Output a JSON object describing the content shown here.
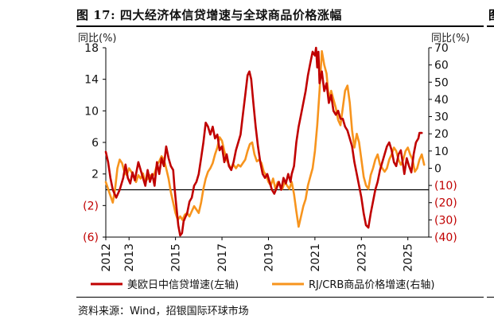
{
  "title": "图 17: 四大经济体信贷增速与全球商品价格涨幅",
  "source": "资料来源：Wind，招银国际环球市场",
  "chart_data": {
    "type": "line",
    "y_left": {
      "unit_label": "同比(%)",
      "range": [
        -6,
        18
      ],
      "ticks": [
        18,
        14,
        10,
        6,
        2,
        -2,
        -6
      ],
      "tick_labels": [
        "18",
        "14",
        "10",
        "6",
        "2",
        "(2)",
        "(6)"
      ]
    },
    "y_right": {
      "unit_label": "同比(%)",
      "range": [
        -40,
        70
      ],
      "ticks": [
        70,
        60,
        50,
        40,
        30,
        20,
        10,
        0,
        -10,
        -20,
        -30,
        -40
      ],
      "tick_labels": [
        "70",
        "60",
        "50",
        "40",
        "30",
        "20",
        "10",
        "0",
        "(10)",
        "(20)",
        "(30)",
        "(40)"
      ]
    },
    "x": {
      "range": [
        2012,
        2025.9
      ],
      "ticks": [
        2012,
        2013,
        2015,
        2017,
        2019,
        2021,
        2023,
        2025
      ],
      "tick_labels": [
        "2012",
        "2013",
        "2015",
        "2017",
        "2019",
        "2021",
        "2023",
        "2025"
      ]
    },
    "legend_position": "bottom",
    "series": [
      {
        "name": "美欧日中信贷增速(左轴)",
        "axis": "left",
        "color": "#c00000",
        "points": [
          [
            2012.0,
            4.8
          ],
          [
            2012.1,
            3.5
          ],
          [
            2012.2,
            1.5
          ],
          [
            2012.3,
            0.0
          ],
          [
            2012.45,
            -1.0
          ],
          [
            2012.6,
            0.0
          ],
          [
            2012.75,
            1.5
          ],
          [
            2012.85,
            3.2
          ],
          [
            2012.95,
            1.5
          ],
          [
            2013.05,
            0.8
          ],
          [
            2013.15,
            2.2
          ],
          [
            2013.25,
            1.2
          ],
          [
            2013.4,
            3.5
          ],
          [
            2013.55,
            2.0
          ],
          [
            2013.7,
            0.5
          ],
          [
            2013.8,
            2.5
          ],
          [
            2013.9,
            1.0
          ],
          [
            2014.0,
            2.0
          ],
          [
            2014.1,
            0.5
          ],
          [
            2014.2,
            3.5
          ],
          [
            2014.3,
            2.0
          ],
          [
            2014.4,
            4.0
          ],
          [
            2014.5,
            3.0
          ],
          [
            2014.6,
            5.5
          ],
          [
            2014.7,
            4.0
          ],
          [
            2014.8,
            3.0
          ],
          [
            2014.9,
            2.5
          ],
          [
            2014.95,
            0.5
          ],
          [
            2015.0,
            -1.0
          ],
          [
            2015.05,
            -2.5
          ],
          [
            2015.12,
            -4.5
          ],
          [
            2015.2,
            -5.8
          ],
          [
            2015.28,
            -5.5
          ],
          [
            2015.35,
            -4.0
          ],
          [
            2015.42,
            -3.5
          ],
          [
            2015.5,
            -3.0
          ],
          [
            2015.6,
            -1.5
          ],
          [
            2015.7,
            -1.0
          ],
          [
            2015.8,
            0.5
          ],
          [
            2015.9,
            1.0
          ],
          [
            2016.0,
            2.0
          ],
          [
            2016.1,
            4.0
          ],
          [
            2016.2,
            6.0
          ],
          [
            2016.3,
            8.5
          ],
          [
            2016.4,
            8.0
          ],
          [
            2016.5,
            7.0
          ],
          [
            2016.6,
            8.0
          ],
          [
            2016.7,
            6.5
          ],
          [
            2016.8,
            7.0
          ],
          [
            2016.9,
            5.0
          ],
          [
            2017.0,
            5.5
          ],
          [
            2017.1,
            3.5
          ],
          [
            2017.2,
            4.5
          ],
          [
            2017.3,
            3.0
          ],
          [
            2017.4,
            2.5
          ],
          [
            2017.5,
            3.5
          ],
          [
            2017.6,
            5.0
          ],
          [
            2017.7,
            6.0
          ],
          [
            2017.8,
            7.0
          ],
          [
            2017.9,
            9.5
          ],
          [
            2018.0,
            12.0
          ],
          [
            2018.1,
            14.5
          ],
          [
            2018.18,
            15.0
          ],
          [
            2018.26,
            14.0
          ],
          [
            2018.35,
            11.0
          ],
          [
            2018.45,
            8.0
          ],
          [
            2018.55,
            5.5
          ],
          [
            2018.65,
            3.5
          ],
          [
            2018.75,
            2.0
          ],
          [
            2018.85,
            1.5
          ],
          [
            2018.95,
            2.0
          ],
          [
            2019.05,
            1.0
          ],
          [
            2019.15,
            0.0
          ],
          [
            2019.25,
            -0.5
          ],
          [
            2019.35,
            0.2
          ],
          [
            2019.45,
            1.0
          ],
          [
            2019.55,
            0.0
          ],
          [
            2019.65,
            1.5
          ],
          [
            2019.75,
            0.8
          ],
          [
            2019.85,
            2.0
          ],
          [
            2019.95,
            1.0
          ],
          [
            2020.0,
            2.0
          ],
          [
            2020.1,
            3.0
          ],
          [
            2020.2,
            6.0
          ],
          [
            2020.3,
            8.0
          ],
          [
            2020.4,
            9.5
          ],
          [
            2020.5,
            11.0
          ],
          [
            2020.6,
            12.5
          ],
          [
            2020.7,
            14.5
          ],
          [
            2020.8,
            16.0
          ],
          [
            2020.9,
            17.5
          ],
          [
            2021.0,
            17.0
          ],
          [
            2021.05,
            18.0
          ],
          [
            2021.1,
            15.5
          ],
          [
            2021.15,
            17.5
          ],
          [
            2021.2,
            13.5
          ],
          [
            2021.3,
            15.0
          ],
          [
            2021.4,
            12.5
          ],
          [
            2021.5,
            13.5
          ],
          [
            2021.6,
            11.0
          ],
          [
            2021.7,
            12.0
          ],
          [
            2021.8,
            10.0
          ],
          [
            2021.9,
            9.5
          ],
          [
            2022.0,
            10.0
          ],
          [
            2022.1,
            9.0
          ],
          [
            2022.2,
            9.0
          ],
          [
            2022.3,
            8.0
          ],
          [
            2022.4,
            7.5
          ],
          [
            2022.5,
            6.5
          ],
          [
            2022.6,
            5.5
          ],
          [
            2022.7,
            3.5
          ],
          [
            2022.8,
            2.0
          ],
          [
            2022.9,
            0.5
          ],
          [
            2023.0,
            -1.0
          ],
          [
            2023.1,
            -3.0
          ],
          [
            2023.2,
            -4.5
          ],
          [
            2023.3,
            -4.8
          ],
          [
            2023.4,
            -3.0
          ],
          [
            2023.5,
            -1.5
          ],
          [
            2023.6,
            0.0
          ],
          [
            2023.7,
            1.0
          ],
          [
            2023.8,
            2.5
          ],
          [
            2023.9,
            3.5
          ],
          [
            2024.0,
            4.5
          ],
          [
            2024.1,
            5.5
          ],
          [
            2024.2,
            6.0
          ],
          [
            2024.3,
            5.0
          ],
          [
            2024.4,
            3.5
          ],
          [
            2024.5,
            3.0
          ],
          [
            2024.6,
            4.5
          ],
          [
            2024.7,
            5.0
          ],
          [
            2024.8,
            3.0
          ],
          [
            2024.85,
            2.0
          ],
          [
            2024.95,
            4.0
          ],
          [
            2025.05,
            3.0
          ],
          [
            2025.15,
            2.2
          ],
          [
            2025.25,
            4.5
          ],
          [
            2025.35,
            6.0
          ],
          [
            2025.45,
            6.5
          ],
          [
            2025.5,
            7.2
          ],
          [
            2025.6,
            7.2
          ]
        ]
      },
      {
        "name": "RJ/CRB商品价格增速(右轴)",
        "axis": "right",
        "color": "#f7941d",
        "points": [
          [
            2012.0,
            -8.0
          ],
          [
            2012.1,
            -12.0
          ],
          [
            2012.2,
            -16.0
          ],
          [
            2012.3,
            -20.0
          ],
          [
            2012.4,
            -12.0
          ],
          [
            2012.5,
            0.0
          ],
          [
            2012.6,
            5.0
          ],
          [
            2012.7,
            3.0
          ],
          [
            2012.8,
            -2.0
          ],
          [
            2012.9,
            -4.0
          ],
          [
            2013.0,
            0.0
          ],
          [
            2013.1,
            -2.0
          ],
          [
            2013.2,
            -5.0
          ],
          [
            2013.3,
            -8.0
          ],
          [
            2013.4,
            -4.0
          ],
          [
            2013.5,
            -6.0
          ],
          [
            2013.6,
            -3.0
          ],
          [
            2013.7,
            -8.0
          ],
          [
            2013.8,
            -6.0
          ],
          [
            2013.9,
            -4.0
          ],
          [
            2014.0,
            -5.0
          ],
          [
            2014.1,
            -3.0
          ],
          [
            2014.2,
            2.0
          ],
          [
            2014.3,
            4.0
          ],
          [
            2014.4,
            7.0
          ],
          [
            2014.5,
            5.0
          ],
          [
            2014.6,
            0.0
          ],
          [
            2014.7,
            -6.0
          ],
          [
            2014.8,
            -14.0
          ],
          [
            2014.9,
            -20.0
          ],
          [
            2015.0,
            -26.0
          ],
          [
            2015.1,
            -30.0
          ],
          [
            2015.2,
            -28.0
          ],
          [
            2015.3,
            -30.0
          ],
          [
            2015.4,
            -27.0
          ],
          [
            2015.5,
            -26.0
          ],
          [
            2015.6,
            -28.0
          ],
          [
            2015.7,
            -25.0
          ],
          [
            2015.8,
            -22.0
          ],
          [
            2015.9,
            -24.0
          ],
          [
            2016.0,
            -26.0
          ],
          [
            2016.1,
            -20.0
          ],
          [
            2016.2,
            -12.0
          ],
          [
            2016.3,
            -6.0
          ],
          [
            2016.4,
            -2.0
          ],
          [
            2016.5,
            0.0
          ],
          [
            2016.6,
            3.0
          ],
          [
            2016.7,
            8.0
          ],
          [
            2016.8,
            12.0
          ],
          [
            2016.9,
            18.0
          ],
          [
            2017.0,
            16.0
          ],
          [
            2017.1,
            10.0
          ],
          [
            2017.2,
            5.0
          ],
          [
            2017.3,
            2.0
          ],
          [
            2017.4,
            0.0
          ],
          [
            2017.5,
            2.0
          ],
          [
            2017.6,
            0.0
          ],
          [
            2017.7,
            2.0
          ],
          [
            2017.8,
            1.0
          ],
          [
            2017.9,
            3.0
          ],
          [
            2018.0,
            5.0
          ],
          [
            2018.1,
            10.0
          ],
          [
            2018.2,
            14.0
          ],
          [
            2018.3,
            15.0
          ],
          [
            2018.4,
            8.0
          ],
          [
            2018.5,
            4.0
          ],
          [
            2018.6,
            5.0
          ],
          [
            2018.7,
            3.0
          ],
          [
            2018.8,
            -2.0
          ],
          [
            2018.9,
            -4.0
          ],
          [
            2019.0,
            -8.0
          ],
          [
            2019.1,
            -10.0
          ],
          [
            2019.2,
            -6.0
          ],
          [
            2019.3,
            -12.0
          ],
          [
            2019.4,
            -8.0
          ],
          [
            2019.5,
            -10.0
          ],
          [
            2019.6,
            -12.0
          ],
          [
            2019.7,
            -8.0
          ],
          [
            2019.8,
            -10.0
          ],
          [
            2019.9,
            -12.0
          ],
          [
            2020.0,
            -8.0
          ],
          [
            2020.1,
            -15.0
          ],
          [
            2020.2,
            -25.0
          ],
          [
            2020.3,
            -34.0
          ],
          [
            2020.4,
            -28.0
          ],
          [
            2020.5,
            -22.0
          ],
          [
            2020.6,
            -18.0
          ],
          [
            2020.7,
            -10.0
          ],
          [
            2020.8,
            -5.0
          ],
          [
            2020.9,
            0.0
          ],
          [
            2021.0,
            10.0
          ],
          [
            2021.1,
            25.0
          ],
          [
            2021.2,
            45.0
          ],
          [
            2021.3,
            68.0
          ],
          [
            2021.4,
            60.0
          ],
          [
            2021.5,
            55.0
          ],
          [
            2021.6,
            40.0
          ],
          [
            2021.7,
            45.0
          ],
          [
            2021.8,
            40.0
          ],
          [
            2021.9,
            35.0
          ],
          [
            2022.0,
            28.0
          ],
          [
            2022.1,
            25.0
          ],
          [
            2022.2,
            35.0
          ],
          [
            2022.3,
            45.0
          ],
          [
            2022.4,
            48.0
          ],
          [
            2022.5,
            38.0
          ],
          [
            2022.6,
            22.0
          ],
          [
            2022.7,
            12.0
          ],
          [
            2022.8,
            20.0
          ],
          [
            2022.9,
            15.0
          ],
          [
            2023.0,
            5.0
          ],
          [
            2023.1,
            -5.0
          ],
          [
            2023.2,
            -10.0
          ],
          [
            2023.3,
            -12.0
          ],
          [
            2023.4,
            -4.0
          ],
          [
            2023.5,
            0.0
          ],
          [
            2023.6,
            5.0
          ],
          [
            2023.7,
            8.0
          ],
          [
            2023.8,
            2.0
          ],
          [
            2023.9,
            0.0
          ],
          [
            2024.0,
            -2.0
          ],
          [
            2024.1,
            0.0
          ],
          [
            2024.2,
            5.0
          ],
          [
            2024.3,
            8.0
          ],
          [
            2024.4,
            12.0
          ],
          [
            2024.5,
            10.0
          ],
          [
            2024.6,
            5.0
          ],
          [
            2024.7,
            2.0
          ],
          [
            2024.8,
            5.0
          ],
          [
            2024.9,
            10.0
          ],
          [
            2025.0,
            12.0
          ],
          [
            2025.1,
            8.0
          ],
          [
            2025.2,
            5.0
          ],
          [
            2025.3,
            -2.0
          ],
          [
            2025.4,
            0.0
          ],
          [
            2025.5,
            5.0
          ],
          [
            2025.6,
            8.0
          ],
          [
            2025.7,
            2.0
          ]
        ]
      }
    ]
  }
}
